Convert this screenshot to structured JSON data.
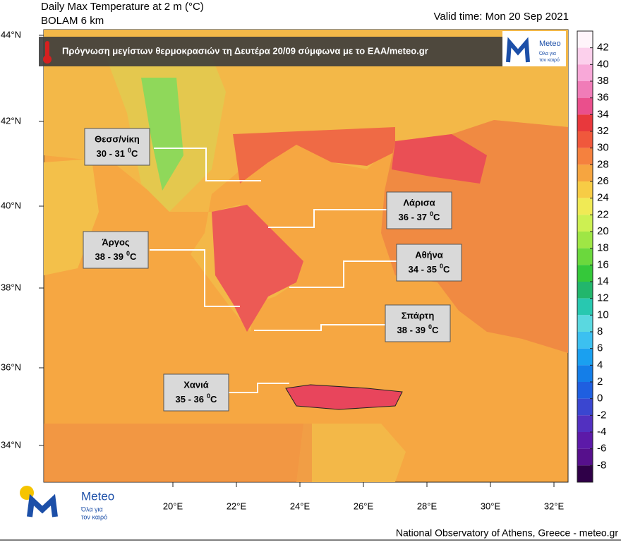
{
  "header": {
    "title": "Daily Max Temperature at 2 m (°C)",
    "model": "BOLAM 6 km",
    "valid_time": "Valid time: Mon 20 Sep 2021"
  },
  "banner": {
    "text": "Πρόγνωση μεγίστων θερμοκρασιών τη Δευτέρα 20/09 σύμφωνα με το ΕΑΑ/meteo.gr"
  },
  "logo": {
    "name": "Meteo",
    "tagline": [
      "Όλα για",
      "τον καιρό"
    ]
  },
  "latitudes": [
    "44°N",
    "42°N",
    "40°N",
    "38°N",
    "36°N",
    "34°N"
  ],
  "longitudes": [
    "20°E",
    "22°E",
    "24°E",
    "26°E",
    "28°E",
    "30°E",
    "32°E"
  ],
  "callouts": [
    {
      "name": "Θεσσ/νίκη",
      "range": "30 - 31",
      "degree": "0",
      "unit": "C"
    },
    {
      "name": "Άργος",
      "range": "38 - 39",
      "degree": "0",
      "unit": "C"
    },
    {
      "name": "Λάρισα",
      "range": "36 - 37",
      "degree": "0",
      "unit": "C"
    },
    {
      "name": "Αθήνα",
      "range": "34 - 35",
      "degree": "0",
      "unit": "C"
    },
    {
      "name": "Σπάρτη",
      "range": "38 - 39",
      "degree": "0",
      "unit": "C"
    },
    {
      "name": "Χανιά",
      "range": "35 - 36",
      "degree": "0",
      "unit": "C"
    }
  ],
  "colorbar": {
    "levels": [
      42,
      40,
      38,
      36,
      34,
      32,
      30,
      28,
      26,
      24,
      22,
      20,
      18,
      16,
      14,
      12,
      10,
      8,
      6,
      4,
      2,
      0,
      -2,
      -4,
      -6,
      -8
    ],
    "colors": [
      "#fff4fa",
      "#fcd0ec",
      "#f8a8d8",
      "#f07cb8",
      "#ea4f8c",
      "#e8383c",
      "#f0583c",
      "#f5813e",
      "#f6a540",
      "#f7cc45",
      "#f0ea55",
      "#cdf052",
      "#9fe645",
      "#6bd83d",
      "#35c83a",
      "#22b66c",
      "#28c8b0",
      "#5ad8e0",
      "#3cc0f0",
      "#1aa0f0",
      "#147ee8",
      "#1f5fe0",
      "#3a46d0",
      "#5230c0",
      "#5c1aa8",
      "#56108c",
      "#2f0048"
    ]
  },
  "footer": "National Observatory of Athens, Greece - meteo.gr"
}
